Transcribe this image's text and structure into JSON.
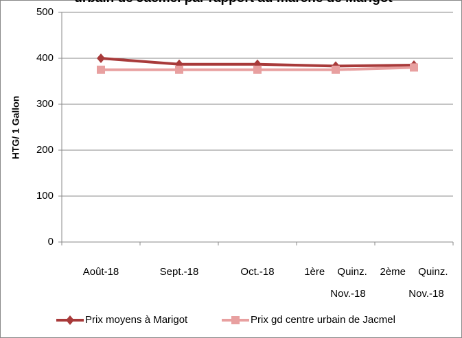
{
  "chart_data": {
    "type": "line",
    "title": "urbain de Jacmel par rapport au marché de Marigot",
    "y_label": "HTG/ 1 Gallon",
    "categories": [
      "Août-18",
      "Sept.-18",
      "Oct.-18",
      "1ère Quinz. Nov.-18",
      "2ème Quinz. Nov.-18"
    ],
    "series": [
      {
        "name": "Prix moyens à Marigot",
        "color": "#a83a3a",
        "marker": "diamond",
        "values": [
          400,
          387,
          387,
          383,
          385
        ]
      },
      {
        "name": "Prix gd centre urbain de Jacmel",
        "color": "#e8a0a0",
        "marker": "square",
        "values": [
          375,
          375,
          375,
          375,
          380
        ]
      }
    ],
    "ylim": [
      0,
      500
    ],
    "yticks": [
      0,
      100,
      200,
      300,
      400,
      500
    ],
    "grid": true,
    "legend": "bottom"
  }
}
